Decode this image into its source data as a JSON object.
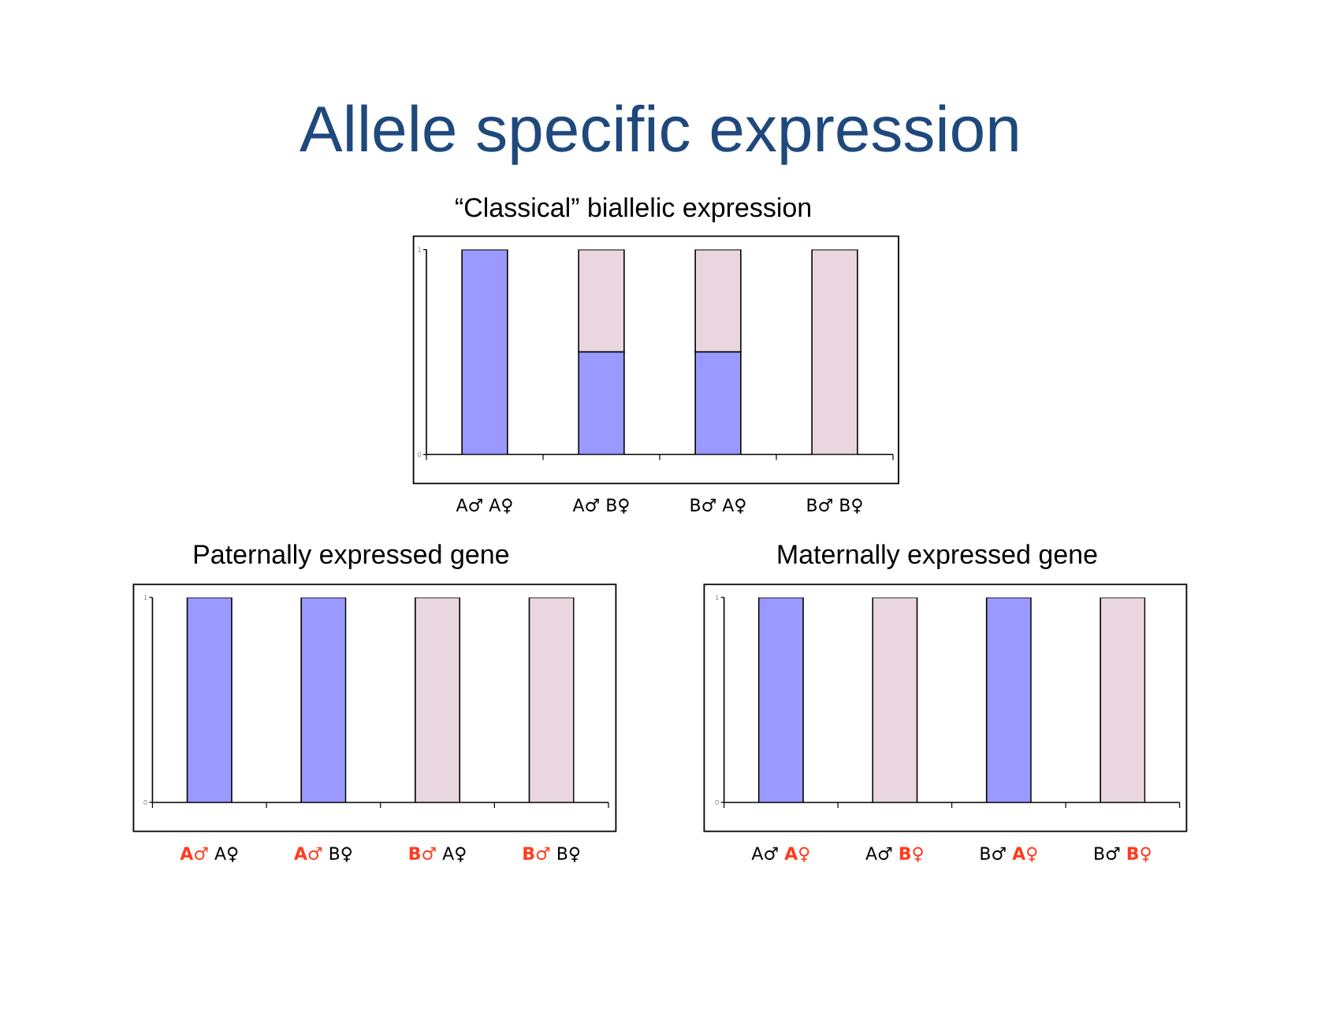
{
  "chart_data": [
    {
      "type": "other",
      "title": "Allele specific expression"
    },
    {
      "type": "bar",
      "title": "“Classical” biallelic expression",
      "categories": [
        "A♂ A♀",
        "A♂ B♀",
        "B♂ A♀",
        "B♂ B♀"
      ],
      "stacked": true,
      "series": [
        {
          "color": "#9999ff",
          "values": [
            1,
            0.5,
            0.5,
            0
          ]
        },
        {
          "color": "#e9d6df",
          "values": [
            0,
            0.5,
            0.5,
            1
          ]
        }
      ],
      "ylim": [
        0,
        1
      ],
      "yticks": [
        0,
        1
      ]
    },
    {
      "type": "bar",
      "title": "Paternally expressed gene",
      "categories": [
        "**A♂** A♀",
        "**A♂** B♀",
        "**B♂** A♀",
        "**B♂** B♀"
      ],
      "stacked": true,
      "series": [
        {
          "color": "#9999ff",
          "values": [
            1,
            1,
            0,
            0
          ]
        },
        {
          "color": "#e9d6df",
          "values": [
            0,
            0,
            1,
            1
          ]
        }
      ],
      "ylim": [
        0,
        1
      ],
      "yticks": [
        0,
        1
      ]
    },
    {
      "type": "bar",
      "title": "Maternally expressed gene",
      "categories": [
        "A♂ **A♀**",
        "A♂ **B♀**",
        "B♂ **A♀**",
        "B♂ **B♀**"
      ],
      "stacked": true,
      "series": [
        {
          "color": "#9999ff",
          "values": [
            1,
            0,
            1,
            0
          ]
        },
        {
          "color": "#e9d6df",
          "values": [
            0,
            1,
            0,
            1
          ]
        }
      ],
      "ylim": [
        0,
        1
      ],
      "yticks": [
        0,
        1
      ]
    }
  ]
}
